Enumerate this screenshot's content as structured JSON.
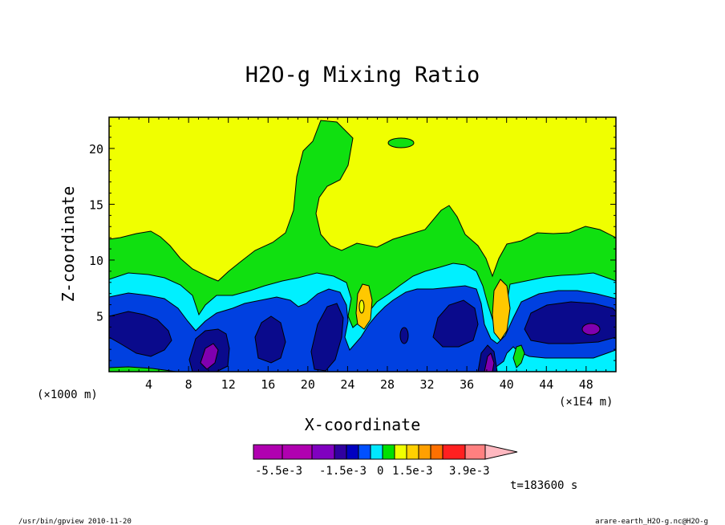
{
  "chart_data": {
    "type": "heatmap",
    "title": "H2O-g Mixing Ratio",
    "xlabel": "X-coordinate",
    "ylabel": "Z-coordinate",
    "x_unit_left": "(×1000 m)",
    "x_unit_right": "(×1E4 m)",
    "xlim": [
      0,
      51
    ],
    "ylim": [
      0,
      22.8
    ],
    "x_ticks": [
      "4",
      "8",
      "12",
      "16",
      "20",
      "24",
      "28",
      "32",
      "36",
      "40",
      "44",
      "48"
    ],
    "y_ticks": [
      "5",
      "10",
      "15",
      "20"
    ],
    "colorbar": {
      "labels": [
        "-5.5e-3",
        "-1.5e-3",
        "0",
        "1.5e-3",
        "3.9e-3"
      ],
      "colors": [
        "#b000b0",
        "#b000b0",
        "#8000c0",
        "#3000a0",
        "#0000c0",
        "#0050ff",
        "#00e8ff",
        "#00e000",
        "#f0ff00",
        "#ffd000",
        "#ffa000",
        "#ff7000",
        "#ff2020",
        "#ff8080",
        "#ffb8c0"
      ]
    },
    "time_label": "t=183600 s",
    "footer_left": "/usr/bin/gpview  2010-11-20",
    "footer_right": "arare-earth_H2O-g.nc@H2O-g",
    "level_colors": {
      "vdark_blue": "#0a0a8c",
      "mid_blue": "#0040e0",
      "cyan": "#00f0ff",
      "green": "#10e010",
      "yellow": "#f0ff00",
      "orange": "#ffc800",
      "purple": "#8000b0"
    }
  }
}
